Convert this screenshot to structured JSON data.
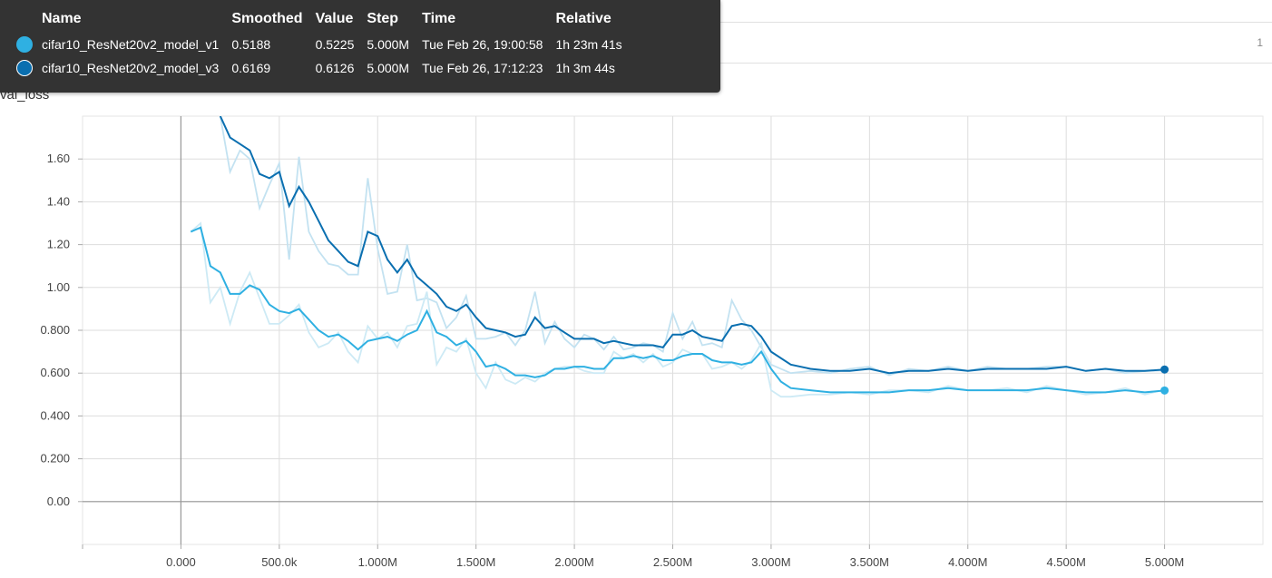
{
  "header": {
    "background_run_label": "val_loss",
    "run_count": "1"
  },
  "chart_title": "val_loss",
  "tooltip": {
    "columns": [
      "Name",
      "Smoothed",
      "Value",
      "Step",
      "Time",
      "Relative"
    ],
    "rows": [
      {
        "color": "#2fb0e2",
        "name": "cifar10_ResNet20v2_model_v1",
        "smoothed": "0.5188",
        "value": "0.5225",
        "step": "5.000M",
        "time": "Tue Feb 26, 19:00:58",
        "relative": "1h 23m 41s"
      },
      {
        "color": "#0a6fb0",
        "name": "cifar10_ResNet20v2_model_v3",
        "smoothed": "0.6169",
        "value": "0.6126",
        "step": "5.000M",
        "time": "Tue Feb 26, 17:12:23",
        "relative": "1h 3m 44s"
      }
    ]
  },
  "chart_data": {
    "type": "line",
    "title": "val_loss",
    "xlabel": "",
    "ylabel": "",
    "xlim": [
      -500000,
      5500000
    ],
    "ylim": [
      -0.2,
      1.8
    ],
    "xticks": [
      0,
      500000,
      1000000,
      1500000,
      2000000,
      2500000,
      3000000,
      3500000,
      4000000,
      4500000,
      5000000
    ],
    "xtick_labels": [
      "0.000",
      "500.0k",
      "1.000M",
      "1.500M",
      "2.000M",
      "2.500M",
      "3.000M",
      "3.500M",
      "4.000M",
      "4.500M",
      "5.000M"
    ],
    "yticks": [
      0,
      0.2,
      0.4,
      0.6,
      0.8,
      1.0,
      1.2,
      1.4,
      1.6
    ],
    "ytick_labels": [
      "0.00",
      "0.200",
      "0.400",
      "0.600",
      "0.800",
      "1.00",
      "1.20",
      "1.40",
      "1.60"
    ],
    "grid": true,
    "series": [
      {
        "name": "cifar10_ResNet20v2_model_v3",
        "color": "#0a6fb0",
        "raw_color": "#c3e2f1",
        "x": [
          200000,
          250000,
          300000,
          350000,
          400000,
          450000,
          500000,
          550000,
          600000,
          650000,
          700000,
          750000,
          800000,
          850000,
          900000,
          950000,
          1000000,
          1050000,
          1100000,
          1150000,
          1200000,
          1250000,
          1300000,
          1350000,
          1400000,
          1450000,
          1500000,
          1550000,
          1600000,
          1650000,
          1700000,
          1750000,
          1800000,
          1850000,
          1900000,
          1950000,
          2000000,
          2050000,
          2100000,
          2150000,
          2200000,
          2250000,
          2300000,
          2350000,
          2400000,
          2450000,
          2500000,
          2550000,
          2600000,
          2650000,
          2700000,
          2750000,
          2800000,
          2850000,
          2900000,
          2950000,
          3000000,
          3100000,
          3200000,
          3300000,
          3400000,
          3500000,
          3600000,
          3700000,
          3800000,
          3900000,
          4000000,
          4100000,
          4200000,
          4300000,
          4400000,
          4500000,
          4600000,
          4700000,
          4800000,
          4900000,
          5000000
        ],
        "smoothed": [
          1.8,
          1.7,
          1.67,
          1.64,
          1.53,
          1.51,
          1.54,
          1.38,
          1.47,
          1.4,
          1.31,
          1.22,
          1.17,
          1.12,
          1.1,
          1.26,
          1.24,
          1.13,
          1.07,
          1.13,
          1.05,
          1.01,
          0.97,
          0.91,
          0.89,
          0.92,
          0.86,
          0.81,
          0.8,
          0.79,
          0.77,
          0.78,
          0.86,
          0.81,
          0.82,
          0.79,
          0.76,
          0.76,
          0.76,
          0.74,
          0.75,
          0.74,
          0.73,
          0.73,
          0.73,
          0.72,
          0.78,
          0.78,
          0.8,
          0.77,
          0.76,
          0.75,
          0.82,
          0.83,
          0.82,
          0.77,
          0.7,
          0.64,
          0.62,
          0.61,
          0.61,
          0.62,
          0.6,
          0.61,
          0.61,
          0.62,
          0.61,
          0.62,
          0.62,
          0.62,
          0.62,
          0.63,
          0.61,
          0.62,
          0.61,
          0.61,
          0.617
        ],
        "values": [
          1.8,
          1.54,
          1.64,
          1.6,
          1.37,
          1.48,
          1.58,
          1.13,
          1.61,
          1.26,
          1.17,
          1.11,
          1.1,
          1.06,
          1.06,
          1.51,
          1.18,
          0.97,
          0.98,
          1.2,
          0.94,
          0.95,
          0.93,
          0.81,
          0.86,
          0.96,
          0.76,
          0.76,
          0.77,
          0.79,
          0.73,
          0.8,
          0.98,
          0.74,
          0.84,
          0.76,
          0.72,
          0.78,
          0.76,
          0.71,
          0.77,
          0.71,
          0.72,
          0.74,
          0.73,
          0.7,
          0.88,
          0.76,
          0.84,
          0.73,
          0.74,
          0.72,
          0.94,
          0.85,
          0.8,
          0.72,
          0.64,
          0.6,
          0.61,
          0.6,
          0.62,
          0.63,
          0.59,
          0.62,
          0.61,
          0.63,
          0.61,
          0.63,
          0.62,
          0.62,
          0.63,
          0.63,
          0.61,
          0.62,
          0.6,
          0.61,
          0.6126
        ]
      },
      {
        "name": "cifar10_ResNet20v2_model_v1",
        "color": "#2fb0e2",
        "raw_color": "#cdeaf5",
        "x": [
          50000,
          100000,
          150000,
          200000,
          250000,
          300000,
          350000,
          400000,
          450000,
          500000,
          550000,
          600000,
          650000,
          700000,
          750000,
          800000,
          850000,
          900000,
          950000,
          1000000,
          1050000,
          1100000,
          1150000,
          1200000,
          1250000,
          1300000,
          1350000,
          1400000,
          1450000,
          1500000,
          1550000,
          1600000,
          1650000,
          1700000,
          1750000,
          1800000,
          1850000,
          1900000,
          1950000,
          2000000,
          2050000,
          2100000,
          2150000,
          2200000,
          2250000,
          2300000,
          2350000,
          2400000,
          2450000,
          2500000,
          2550000,
          2600000,
          2650000,
          2700000,
          2750000,
          2800000,
          2850000,
          2900000,
          2950000,
          3000000,
          3050000,
          3100000,
          3200000,
          3300000,
          3400000,
          3500000,
          3600000,
          3700000,
          3800000,
          3900000,
          4000000,
          4100000,
          4200000,
          4300000,
          4400000,
          4500000,
          4600000,
          4700000,
          4800000,
          4900000,
          5000000
        ],
        "smoothed": [
          1.26,
          1.28,
          1.1,
          1.07,
          0.97,
          0.97,
          1.01,
          0.99,
          0.92,
          0.89,
          0.88,
          0.9,
          0.85,
          0.8,
          0.77,
          0.78,
          0.75,
          0.71,
          0.75,
          0.76,
          0.77,
          0.75,
          0.78,
          0.8,
          0.89,
          0.79,
          0.77,
          0.73,
          0.75,
          0.7,
          0.63,
          0.64,
          0.62,
          0.59,
          0.59,
          0.58,
          0.59,
          0.62,
          0.62,
          0.63,
          0.63,
          0.62,
          0.62,
          0.67,
          0.67,
          0.68,
          0.67,
          0.68,
          0.66,
          0.66,
          0.68,
          0.69,
          0.69,
          0.66,
          0.65,
          0.65,
          0.64,
          0.65,
          0.7,
          0.62,
          0.56,
          0.53,
          0.52,
          0.51,
          0.51,
          0.51,
          0.51,
          0.52,
          0.52,
          0.53,
          0.52,
          0.52,
          0.52,
          0.52,
          0.53,
          0.52,
          0.51,
          0.51,
          0.52,
          0.51,
          0.5188
        ],
        "values": [
          1.26,
          1.3,
          0.93,
          1.0,
          0.83,
          0.98,
          1.07,
          0.95,
          0.83,
          0.83,
          0.87,
          0.92,
          0.79,
          0.72,
          0.74,
          0.79,
          0.7,
          0.65,
          0.82,
          0.76,
          0.79,
          0.72,
          0.82,
          0.83,
          0.98,
          0.64,
          0.72,
          0.7,
          0.76,
          0.6,
          0.53,
          0.65,
          0.57,
          0.55,
          0.58,
          0.56,
          0.6,
          0.62,
          0.63,
          0.63,
          0.61,
          0.6,
          0.6,
          0.7,
          0.67,
          0.69,
          0.65,
          0.69,
          0.63,
          0.65,
          0.71,
          0.69,
          0.69,
          0.62,
          0.63,
          0.65,
          0.62,
          0.66,
          0.74,
          0.52,
          0.49,
          0.49,
          0.5,
          0.5,
          0.51,
          0.5,
          0.52,
          0.52,
          0.51,
          0.54,
          0.52,
          0.52,
          0.53,
          0.51,
          0.54,
          0.52,
          0.5,
          0.51,
          0.53,
          0.5,
          0.5225
        ]
      }
    ]
  }
}
